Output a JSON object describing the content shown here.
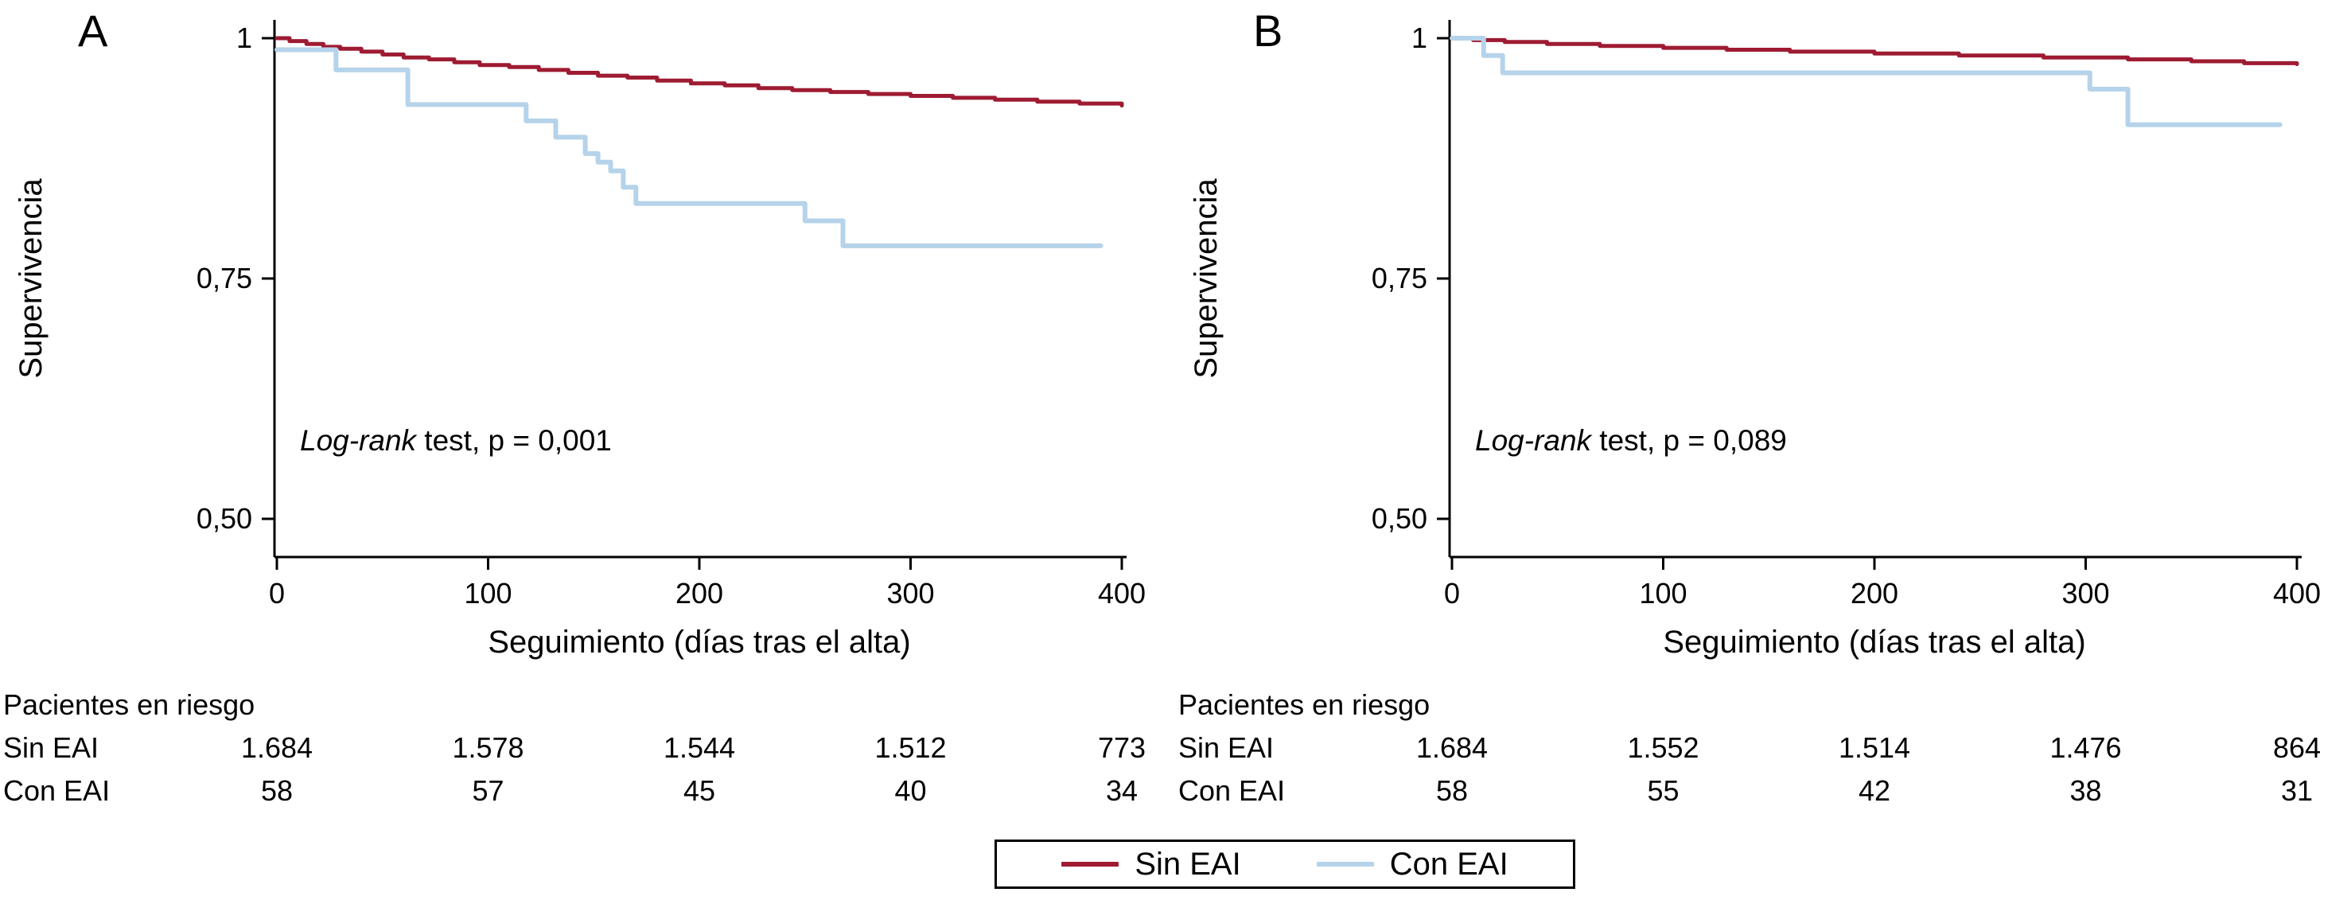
{
  "figure": {
    "description": "Kaplan-Meier survival curves, panels A and B",
    "legend": {
      "position": "bottom-center",
      "items": [
        {
          "label": "Sin EAI",
          "color": "#9e1b32"
        },
        {
          "label": "Con EAI",
          "color": "#b5d3ea"
        }
      ]
    }
  },
  "chart_data": [
    {
      "type": "line",
      "subtype": "kaplan-meier-step",
      "panel_label": "A",
      "xlabel": "Seguimiento (días tras el alta)",
      "ylabel": "Supervivencia",
      "xlim": [
        0,
        400
      ],
      "ylim": [
        0.5,
        1.0
      ],
      "xticks": [
        0,
        100,
        200,
        300,
        400
      ],
      "xtick_labels": [
        "0",
        "100",
        "200",
        "300",
        "400"
      ],
      "yticks": [
        1,
        0.75,
        0.5
      ],
      "ytick_labels": [
        "1",
        "0,75",
        "0,50"
      ],
      "grid": false,
      "annotation": {
        "italic_part": "Log-rank",
        "normal_part": " test, p = 0,001"
      },
      "series": [
        {
          "name": "Sin EAI",
          "color": "#9e1b32",
          "step": true,
          "points": [
            [
              0,
              1.0
            ],
            [
              6,
              0.997
            ],
            [
              14,
              0.994
            ],
            [
              22,
              0.991
            ],
            [
              30,
              0.989
            ],
            [
              40,
              0.986
            ],
            [
              50,
              0.983
            ],
            [
              60,
              0.98
            ],
            [
              72,
              0.978
            ],
            [
              84,
              0.975
            ],
            [
              96,
              0.972
            ],
            [
              110,
              0.97
            ],
            [
              124,
              0.967
            ],
            [
              138,
              0.964
            ],
            [
              152,
              0.961
            ],
            [
              166,
              0.959
            ],
            [
              180,
              0.956
            ],
            [
              196,
              0.953
            ],
            [
              212,
              0.951
            ],
            [
              228,
              0.948
            ],
            [
              244,
              0.946
            ],
            [
              262,
              0.944
            ],
            [
              280,
              0.942
            ],
            [
              300,
              0.94
            ],
            [
              320,
              0.938
            ],
            [
              340,
              0.936
            ],
            [
              360,
              0.934
            ],
            [
              380,
              0.932
            ],
            [
              400,
              0.93
            ]
          ]
        },
        {
          "name": "Con EAI",
          "color": "#b5d3ea",
          "step": true,
          "points": [
            [
              0,
              0.988
            ],
            [
              28,
              0.967
            ],
            [
              62,
              0.931
            ],
            [
              118,
              0.914
            ],
            [
              132,
              0.897
            ],
            [
              146,
              0.88
            ],
            [
              152,
              0.871
            ],
            [
              158,
              0.862
            ],
            [
              164,
              0.845
            ],
            [
              170,
              0.828
            ],
            [
              250,
              0.81
            ],
            [
              268,
              0.784
            ],
            [
              390,
              0.784
            ]
          ]
        }
      ],
      "risk_table": {
        "title": "Pacientes en riesgo",
        "rows": [
          {
            "label": "Sin EAI",
            "values": [
              "1.684",
              "1.578",
              "1.544",
              "1.512",
              "773"
            ]
          },
          {
            "label": "Con EAI",
            "values": [
              "58",
              "57",
              "45",
              "40",
              "34"
            ]
          }
        ]
      }
    },
    {
      "type": "line",
      "subtype": "kaplan-meier-step",
      "panel_label": "B",
      "xlabel": "Seguimiento (días tras el alta)",
      "ylabel": "Supervivencia",
      "xlim": [
        0,
        400
      ],
      "ylim": [
        0.5,
        1.0
      ],
      "xticks": [
        0,
        100,
        200,
        300,
        400
      ],
      "xtick_labels": [
        "0",
        "100",
        "200",
        "300",
        "400"
      ],
      "yticks": [
        1,
        0.75,
        0.5
      ],
      "ytick_labels": [
        "1",
        "0,75",
        "0,50"
      ],
      "grid": false,
      "annotation": {
        "italic_part": "Log-rank",
        "normal_part": " test, p = 0,089"
      },
      "series": [
        {
          "name": "Sin EAI",
          "color": "#9e1b32",
          "step": true,
          "points": [
            [
              0,
              1.0
            ],
            [
              10,
              0.998
            ],
            [
              25,
              0.996
            ],
            [
              45,
              0.994
            ],
            [
              70,
              0.992
            ],
            [
              100,
              0.99
            ],
            [
              130,
              0.988
            ],
            [
              160,
              0.986
            ],
            [
              200,
              0.984
            ],
            [
              240,
              0.982
            ],
            [
              280,
              0.98
            ],
            [
              320,
              0.978
            ],
            [
              350,
              0.976
            ],
            [
              375,
              0.974
            ],
            [
              400,
              0.973
            ]
          ]
        },
        {
          "name": "Con EAI",
          "color": "#b5d3ea",
          "step": true,
          "points": [
            [
              0,
              1.0
            ],
            [
              15,
              0.982
            ],
            [
              24,
              0.964
            ],
            [
              302,
              0.947
            ],
            [
              320,
              0.91
            ],
            [
              392,
              0.91
            ]
          ]
        }
      ],
      "risk_table": {
        "title": "Pacientes en riesgo",
        "rows": [
          {
            "label": "Sin EAI",
            "values": [
              "1.684",
              "1.552",
              "1.514",
              "1.476",
              "864"
            ]
          },
          {
            "label": "Con EAI",
            "values": [
              "58",
              "55",
              "42",
              "38",
              "31"
            ]
          }
        ]
      }
    }
  ]
}
